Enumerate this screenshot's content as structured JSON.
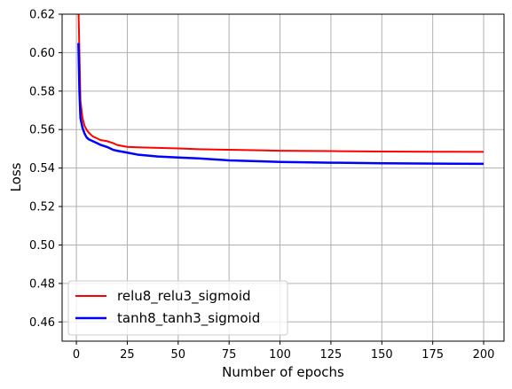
{
  "chart_data": {
    "type": "line",
    "title": "",
    "xlabel": "Number of epochs",
    "ylabel": "Loss",
    "xlim": [
      -7,
      210
    ],
    "ylim": [
      0.45,
      0.62
    ],
    "xticks": [
      0,
      25,
      50,
      75,
      100,
      125,
      150,
      175,
      200
    ],
    "xtick_labels": [
      "0",
      "25",
      "50",
      "75",
      "100",
      "125",
      "150",
      "175",
      "200"
    ],
    "yticks": [
      0.46,
      0.48,
      0.5,
      0.52,
      0.54,
      0.56,
      0.58,
      0.6,
      0.62
    ],
    "ytick_labels": [
      "0.46",
      "0.48",
      "0.50",
      "0.52",
      "0.54",
      "0.56",
      "0.58",
      "0.60",
      "0.62"
    ],
    "grid": true,
    "legend_position": "lower-left",
    "series": [
      {
        "name": "relu8_relu3_sigmoid",
        "color": "#ff0000",
        "x": [
          1,
          1.5,
          2,
          3,
          4,
          5,
          6,
          8,
          10,
          12,
          15,
          18,
          20,
          25,
          30,
          40,
          50,
          60,
          75,
          90,
          100,
          125,
          150,
          175,
          200
        ],
        "y": [
          0.625,
          0.6,
          0.575,
          0.566,
          0.562,
          0.56,
          0.5585,
          0.5565,
          0.5555,
          0.5545,
          0.554,
          0.553,
          0.552,
          0.551,
          0.5508,
          0.5505,
          0.5502,
          0.5498,
          0.5495,
          0.5492,
          0.549,
          0.5488,
          0.5486,
          0.5485,
          0.5484
        ]
      },
      {
        "name": "tanh8_tanh3_sigmoid",
        "color": "#0000ff",
        "x": [
          1,
          1.5,
          2,
          3,
          4,
          5,
          6,
          8,
          10,
          12,
          15,
          18,
          20,
          25,
          30,
          40,
          50,
          60,
          75,
          90,
          100,
          125,
          150,
          175,
          200
        ],
        "y": [
          0.605,
          0.58,
          0.566,
          0.561,
          0.558,
          0.556,
          0.555,
          0.554,
          0.553,
          0.552,
          0.551,
          0.5495,
          0.549,
          0.548,
          0.547,
          0.546,
          0.5455,
          0.545,
          0.544,
          0.5435,
          0.5432,
          0.5428,
          0.5425,
          0.5423,
          0.5422
        ]
      }
    ]
  }
}
